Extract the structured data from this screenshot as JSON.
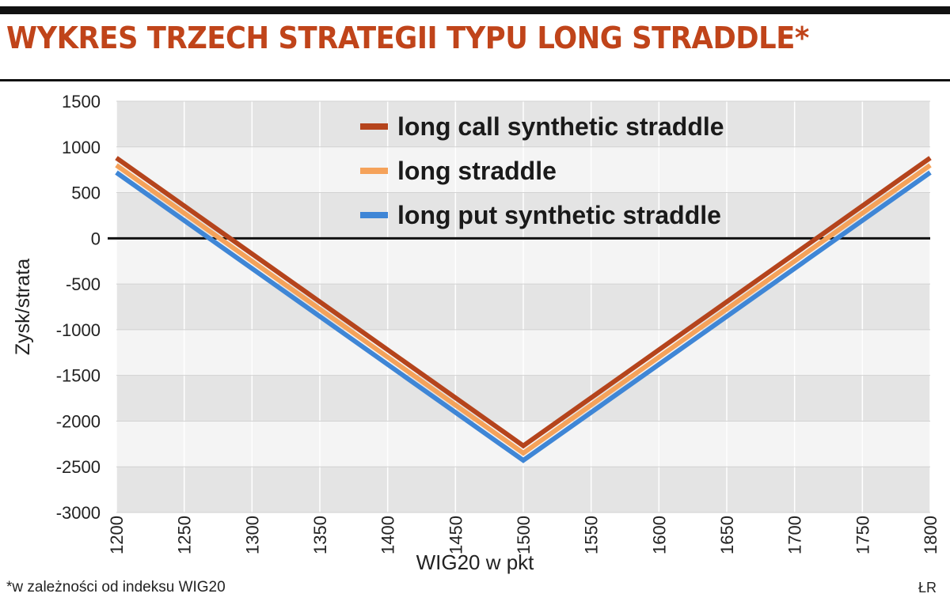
{
  "header": {
    "title": "WYKRES TRZECH STRATEGII TYPU LONG STRADDLE*"
  },
  "footer": {
    "footnote": "*w zależności od indeksu WIG20",
    "credit": "ŁR"
  },
  "chart_data": {
    "type": "line",
    "title": "WYKRES TRZECH STRATEGII TYPU LONG STRADDLE*",
    "xlabel": "WIG20 w pkt",
    "ylabel": "Zysk/strata",
    "xlim": [
      1200,
      1800
    ],
    "ylim": [
      -3000,
      1500
    ],
    "xticks": [
      1200,
      1250,
      1300,
      1350,
      1400,
      1450,
      1500,
      1550,
      1600,
      1650,
      1700,
      1750,
      1800
    ],
    "yticks": [
      1500,
      1000,
      500,
      0,
      -500,
      -1000,
      -1500,
      -2000,
      -2500,
      -3000
    ],
    "grid": true,
    "legend_position": "top-right",
    "series": [
      {
        "name": "long call synthetic straddle",
        "color": "#b5441c",
        "x": [
          1200,
          1500,
          1800
        ],
        "y": [
          880,
          -2270,
          880
        ]
      },
      {
        "name": "long straddle",
        "color": "#f5a25a",
        "x": [
          1200,
          1500,
          1800
        ],
        "y": [
          800,
          -2350,
          800
        ]
      },
      {
        "name": "long put synthetic straddle",
        "color": "#3f86d6",
        "x": [
          1200,
          1500,
          1800
        ],
        "y": [
          720,
          -2430,
          720
        ]
      }
    ]
  }
}
